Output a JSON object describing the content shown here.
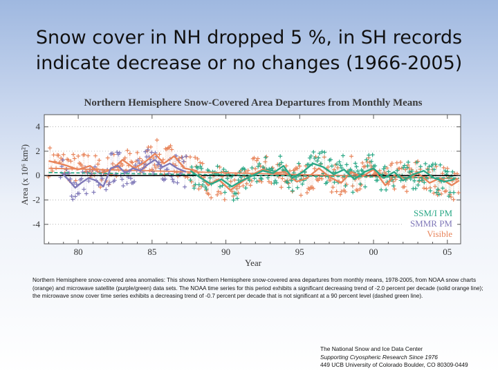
{
  "slide": {
    "title": "Snow cover in NH dropped 5 %, in SH records indicate decrease or no changes (1966-2005)",
    "caption": "Northern Hemisphere snow-covered area anomalies: This shows Northern Hemisphere snow-covered area departures from monthly means, 1978-2005, from NOAA snow charts (orange) and microwave satellite (purple/green) data sets. The NOAA time series for this period exhibits a significant decreasing trend of -2.0 percent per decade (solid orange line); the microwave snow cover time series exhibits a decreasing trend of -0.7 percent per decade that is not significant at a 90 percent level (dashed green line).",
    "credit": {
      "line1": "The National Snow and Ice Data Center",
      "line2": "Supporting Cryospheric Research Since 1976",
      "line3": "449 UCB  University of Colorado  Boulder, CO 80309-0449"
    }
  },
  "chart_data": {
    "type": "line",
    "title": "Northern Hemisphere Snow-Covered Area Departures from Monthly Means",
    "xlabel": "Year",
    "ylabel": "Area (x 10⁶ km²)",
    "xlim": [
      1977.7,
      2005.9
    ],
    "ylim": [
      -5.6,
      5.0
    ],
    "x_ticks": [
      1980,
      1985,
      1990,
      1995,
      2000,
      2005
    ],
    "x_tick_labels": [
      "80",
      "85",
      "90",
      "95",
      "00",
      "05"
    ],
    "y_ticks": [
      4,
      2,
      0,
      -2,
      -4
    ],
    "y_tick_labels": [
      "4",
      "2",
      "0",
      "-2",
      "-4"
    ],
    "zero_line": true,
    "grid": "dotted-horizontal",
    "legend_position": "bottom-right",
    "series": [
      {
        "name": "Visible",
        "color": "#e8845a",
        "smoothed": [
          [
            1978.0,
            1.2
          ],
          [
            1979.0,
            0.9
          ],
          [
            1980.0,
            0.5
          ],
          [
            1980.8,
            0.8
          ],
          [
            1981.5,
            0.2
          ],
          [
            1982.3,
            0.5
          ],
          [
            1983.0,
            1.3
          ],
          [
            1983.8,
            0.6
          ],
          [
            1984.5,
            1.1
          ],
          [
            1985.2,
            1.8
          ],
          [
            1985.8,
            1.0
          ],
          [
            1986.5,
            1.6
          ],
          [
            1987.2,
            0.6
          ],
          [
            1988.0,
            0.4
          ],
          [
            1988.8,
            -0.8
          ],
          [
            1989.5,
            -0.3
          ],
          [
            1990.3,
            -1.2
          ],
          [
            1991.0,
            -0.6
          ],
          [
            1991.8,
            0.1
          ],
          [
            1992.5,
            0.5
          ],
          [
            1993.2,
            0.2
          ],
          [
            1994.0,
            0.3
          ],
          [
            1994.8,
            -0.5
          ],
          [
            1995.5,
            -0.2
          ],
          [
            1996.3,
            0.6
          ],
          [
            1997.0,
            -0.1
          ],
          [
            1997.8,
            -0.6
          ],
          [
            1998.5,
            0.3
          ],
          [
            1999.2,
            -0.1
          ],
          [
            2000.0,
            0.5
          ],
          [
            2000.8,
            -0.8
          ],
          [
            2001.5,
            0.1
          ],
          [
            2002.2,
            -0.3
          ],
          [
            2003.0,
            0.2
          ],
          [
            2003.8,
            -0.6
          ],
          [
            2004.5,
            -0.2
          ],
          [
            2005.3,
            -0.8
          ],
          [
            2005.8,
            -0.4
          ]
        ],
        "trend": [
          [
            1978.0,
            0.6
          ],
          [
            2005.8,
            -0.25
          ]
        ]
      },
      {
        "name": "SMMR PM",
        "color": "#7f78b8",
        "smoothed": [
          [
            1978.8,
            0.3
          ],
          [
            1979.3,
            -0.3
          ],
          [
            1979.8,
            -1.0
          ],
          [
            1980.2,
            -0.6
          ],
          [
            1980.7,
            -0.2
          ],
          [
            1981.2,
            -0.4
          ],
          [
            1981.7,
            -0.9
          ],
          [
            1982.2,
            0.6
          ],
          [
            1982.7,
            0.8
          ],
          [
            1983.2,
            0.2
          ],
          [
            1983.7,
            0.6
          ],
          [
            1984.2,
            0.4
          ],
          [
            1984.7,
            0.9
          ],
          [
            1985.2,
            1.3
          ],
          [
            1985.7,
            0.7
          ],
          [
            1986.2,
            1.0
          ],
          [
            1986.7,
            0.6
          ],
          [
            1987.3,
            0.3
          ]
        ]
      },
      {
        "name": "SSM/I PM",
        "color": "#2aa886",
        "smoothed": [
          [
            1987.6,
            0.4
          ],
          [
            1988.3,
            -0.2
          ],
          [
            1989.0,
            -0.7
          ],
          [
            1989.7,
            -0.3
          ],
          [
            1990.4,
            -0.9
          ],
          [
            1991.1,
            -0.4
          ],
          [
            1991.8,
            0.0
          ],
          [
            1992.5,
            0.4
          ],
          [
            1993.2,
            0.2
          ],
          [
            1993.9,
            0.8
          ],
          [
            1994.5,
            -0.2
          ],
          [
            1995.2,
            0.3
          ],
          [
            1995.9,
            1.0
          ],
          [
            1996.6,
            0.7
          ],
          [
            1997.3,
            0.1
          ],
          [
            1998.0,
            0.5
          ],
          [
            1998.7,
            -0.3
          ],
          [
            1999.4,
            0.3
          ],
          [
            2000.0,
            0.6
          ],
          [
            2000.7,
            -0.2
          ],
          [
            2001.4,
            0.3
          ],
          [
            2002.0,
            -0.4
          ],
          [
            2002.7,
            0.1
          ],
          [
            2003.4,
            0.4
          ],
          [
            2004.1,
            -0.2
          ],
          [
            2004.8,
            -0.5
          ],
          [
            2005.5,
            -0.3
          ]
        ],
        "trend": [
          [
            1978.0,
            0.25
          ],
          [
            2005.8,
            -0.2
          ]
        ]
      }
    ]
  }
}
